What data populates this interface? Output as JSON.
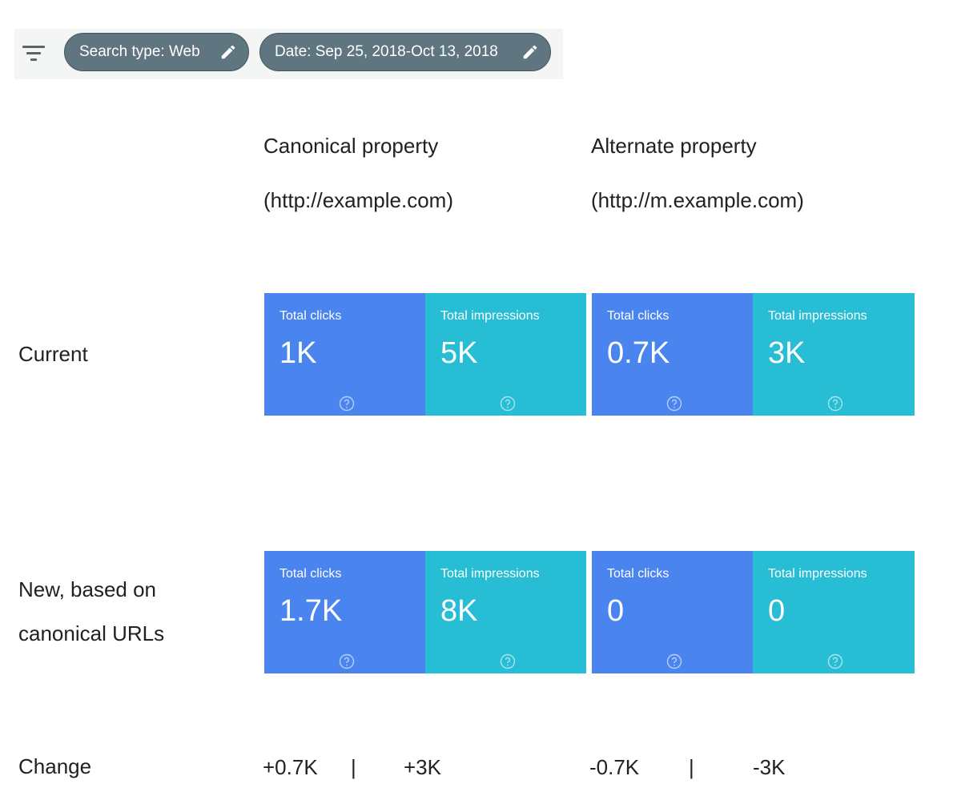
{
  "filter_bar": {
    "search_type_chip": "Search type: Web",
    "date_chip": "Date: Sep 25, 2018-Oct 13, 2018"
  },
  "columns": {
    "canonical": {
      "title": "Canonical property",
      "url": "(http://example.com)"
    },
    "alternate": {
      "title": "Alternate property",
      "url": "(http://m.example.com)"
    }
  },
  "rows": {
    "current": {
      "label": "Current"
    },
    "new": {
      "label_line1": "New, based on",
      "label_line2": "canonical URLs"
    },
    "change": {
      "label": "Change"
    }
  },
  "cards": {
    "current": {
      "canonical": {
        "clicks": {
          "title": "Total clicks",
          "value": "1K"
        },
        "impressions": {
          "title": "Total impressions",
          "value": "5K"
        }
      },
      "alternate": {
        "clicks": {
          "title": "Total clicks",
          "value": "0.7K"
        },
        "impressions": {
          "title": "Total impressions",
          "value": "3K"
        }
      }
    },
    "new": {
      "canonical": {
        "clicks": {
          "title": "Total clicks",
          "value": "1.7K"
        },
        "impressions": {
          "title": "Total impressions",
          "value": "8K"
        }
      },
      "alternate": {
        "clicks": {
          "title": "Total clicks",
          "value": "0"
        },
        "impressions": {
          "title": "Total impressions",
          "value": "0"
        }
      }
    }
  },
  "change": {
    "canonical_clicks": "+0.7K",
    "canonical_impressions": "+3K",
    "alternate_clicks": "-0.7K",
    "alternate_impressions": "-3K",
    "separator": "|"
  },
  "colors": {
    "clicks_card": "#4a84ef",
    "impressions_card": "#26bdd5",
    "chip": "#5f7580"
  },
  "icons": [
    "filter-icon",
    "pencil-icon",
    "help-icon"
  ]
}
